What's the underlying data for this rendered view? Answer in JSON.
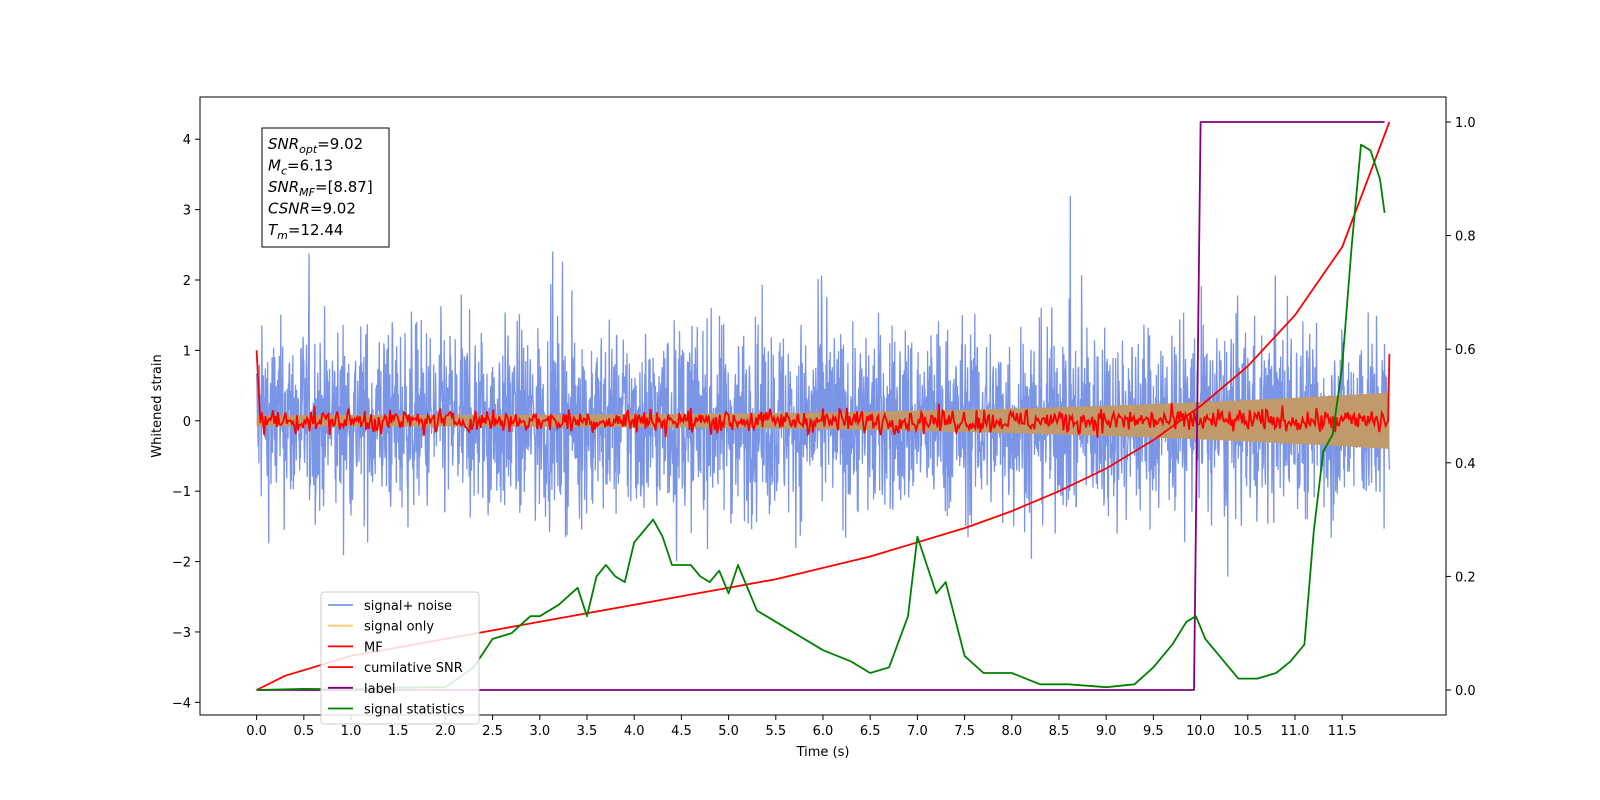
{
  "chart_data": {
    "type": "line",
    "xlabel": "Time (s)",
    "ylabel": "Whitened strain",
    "xlim": [
      -0.6,
      12.6
    ],
    "ylim": [
      -4.18,
      4.6
    ],
    "y2lim": [
      -0.044,
      1.044
    ],
    "xticks": [
      "0.0",
      "0.5",
      "1.0",
      "1.5",
      "2.0",
      "2.5",
      "3.0",
      "3.5",
      "4.0",
      "4.5",
      "5.0",
      "5.5",
      "6.0",
      "6.5",
      "7.0",
      "7.5",
      "8.0",
      "8.5",
      "9.0",
      "9.5",
      "10.0",
      "10.5",
      "11.0",
      "11.5"
    ],
    "yticks": [
      "−4",
      "−3",
      "−2",
      "−1",
      "0",
      "1",
      "2",
      "3",
      "4"
    ],
    "y2ticks": [
      "0.0",
      "0.2",
      "0.4",
      "0.6",
      "0.8",
      "1.0"
    ],
    "grid": false,
    "legend": {
      "position": "lower-left",
      "entries": [
        {
          "label": "signal+ noise",
          "color": "#7a94e6"
        },
        {
          "label": "signal only",
          "color": "#ffc870"
        },
        {
          "label": "MF",
          "color": "#ff0000"
        },
        {
          "label": "cumilative SNR",
          "color": "#ff0000"
        },
        {
          "label": "label",
          "color": "#800080"
        },
        {
          "label": "signal statistics",
          "color": "#008000"
        }
      ]
    },
    "annotation": {
      "lines": [
        {
          "base": "SNR",
          "sub": "opt",
          "value": "=9.02"
        },
        {
          "base": "M",
          "sub": "c",
          "value": "=6.13"
        },
        {
          "base": "SNR",
          "sub": "MF",
          "value": "=[8.87]"
        },
        {
          "base": "CSNR",
          "sub": "",
          "value": "=9.02"
        },
        {
          "base": "T",
          "sub": "m",
          "value": "=12.44"
        }
      ]
    },
    "series": [
      {
        "name": "signal+ noise",
        "axis": "left",
        "style": "noise",
        "x_range": [
          0,
          12.0
        ],
        "envelope": 2.3,
        "color": "#7a94e6"
      },
      {
        "name": "signal only",
        "axis": "left",
        "style": "chirp-band",
        "x_range": [
          0,
          12.0
        ],
        "amplitude_end": 0.4,
        "color": "#c09a6b"
      },
      {
        "name": "MF",
        "axis": "left",
        "style": "noise",
        "x_range": [
          0,
          12.0
        ],
        "envelope": 0.12,
        "start_value": 1.0,
        "end_value": 0.95,
        "color": "#ff0000"
      },
      {
        "name": "cumilative SNR",
        "axis": "right",
        "color": "#ff0000",
        "x": [
          0.0,
          0.3,
          0.6,
          1.0,
          1.5,
          2.0,
          2.5,
          3.0,
          3.5,
          4.0,
          4.5,
          5.0,
          5.5,
          6.0,
          6.5,
          7.0,
          7.5,
          8.0,
          8.5,
          9.0,
          9.5,
          10.0,
          10.5,
          11.0,
          11.5,
          12.0
        ],
        "y": [
          0.0,
          0.025,
          0.04,
          0.06,
          0.075,
          0.09,
          0.105,
          0.12,
          0.135,
          0.15,
          0.165,
          0.18,
          0.195,
          0.215,
          0.235,
          0.26,
          0.285,
          0.315,
          0.35,
          0.39,
          0.44,
          0.5,
          0.57,
          0.66,
          0.78,
          1.0
        ]
      },
      {
        "name": "label",
        "axis": "right",
        "color": "#800080",
        "x": [
          0.0,
          9.93,
          10.0,
          11.95
        ],
        "y": [
          0.0,
          0.0,
          1.0,
          1.0
        ]
      },
      {
        "name": "signal statistics",
        "axis": "right",
        "color": "#008000",
        "x": [
          0.0,
          0.5,
          1.0,
          1.5,
          2.0,
          2.3,
          2.5,
          2.7,
          2.9,
          3.0,
          3.2,
          3.4,
          3.5,
          3.6,
          3.7,
          3.8,
          3.9,
          4.0,
          4.1,
          4.2,
          4.3,
          4.4,
          4.5,
          4.6,
          4.7,
          4.8,
          4.9,
          5.0,
          5.1,
          5.3,
          5.5,
          5.7,
          6.0,
          6.3,
          6.5,
          6.7,
          6.9,
          7.0,
          7.1,
          7.2,
          7.3,
          7.5,
          7.7,
          8.0,
          8.3,
          8.6,
          9.0,
          9.3,
          9.5,
          9.7,
          9.85,
          9.95,
          10.05,
          10.2,
          10.4,
          10.6,
          10.8,
          10.95,
          11.1,
          11.2,
          11.3,
          11.4,
          11.5,
          11.6,
          11.7,
          11.8,
          11.9,
          11.95
        ],
        "y": [
          0.0,
          0.002,
          0.001,
          0.004,
          0.005,
          0.04,
          0.09,
          0.1,
          0.13,
          0.13,
          0.15,
          0.18,
          0.13,
          0.2,
          0.22,
          0.2,
          0.19,
          0.26,
          0.28,
          0.3,
          0.27,
          0.22,
          0.22,
          0.22,
          0.2,
          0.19,
          0.21,
          0.17,
          0.22,
          0.14,
          0.12,
          0.1,
          0.07,
          0.05,
          0.03,
          0.04,
          0.13,
          0.27,
          0.22,
          0.17,
          0.19,
          0.06,
          0.03,
          0.03,
          0.01,
          0.01,
          0.005,
          0.01,
          0.04,
          0.08,
          0.12,
          0.13,
          0.09,
          0.06,
          0.02,
          0.02,
          0.03,
          0.05,
          0.08,
          0.28,
          0.42,
          0.45,
          0.57,
          0.78,
          0.96,
          0.95,
          0.9,
          0.84
        ]
      }
    ]
  }
}
